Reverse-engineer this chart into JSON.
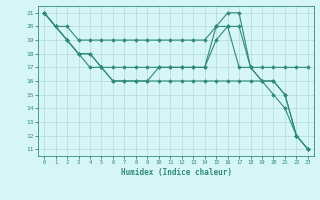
{
  "xlabel": "Humidex (Indice chaleur)",
  "bg_color": "#d6f5f5",
  "grid_color": "#b8dede",
  "line_color": "#2e8b7a",
  "xlim": [
    -0.5,
    23.5
  ],
  "ylim": [
    10.5,
    21.5
  ],
  "xticks": [
    0,
    1,
    2,
    3,
    4,
    5,
    6,
    7,
    8,
    9,
    10,
    11,
    12,
    13,
    14,
    15,
    16,
    17,
    18,
    19,
    20,
    21,
    22,
    23
  ],
  "yticks": [
    11,
    12,
    13,
    14,
    15,
    16,
    17,
    18,
    19,
    20,
    21
  ],
  "lines": [
    {
      "x": [
        0,
        1,
        2,
        3,
        4,
        5,
        6,
        7,
        8,
        9,
        10,
        11,
        12,
        13,
        14,
        15,
        16,
        17,
        18,
        19,
        20,
        21,
        22,
        23
      ],
      "y": [
        21,
        20,
        20,
        19,
        19,
        19,
        19,
        19,
        19,
        19,
        19,
        19,
        19,
        19,
        19,
        20,
        20,
        20,
        17,
        17,
        17,
        17,
        17,
        17
      ]
    },
    {
      "x": [
        0,
        1,
        2,
        3,
        4,
        5,
        6,
        7,
        8,
        9,
        10,
        11,
        12,
        13,
        14,
        15,
        16,
        17,
        18,
        19,
        20,
        21,
        22,
        23
      ],
      "y": [
        21,
        20,
        19,
        18,
        18,
        17,
        17,
        17,
        17,
        17,
        17,
        17,
        17,
        17,
        17,
        19,
        20,
        17,
        17,
        16,
        16,
        15,
        12,
        11
      ]
    },
    {
      "x": [
        0,
        1,
        2,
        3,
        4,
        5,
        6,
        7,
        8,
        9,
        10,
        11,
        12,
        13,
        14,
        15,
        16,
        17,
        18,
        19,
        20,
        21,
        22,
        23
      ],
      "y": [
        21,
        20,
        19,
        18,
        18,
        17,
        16,
        16,
        16,
        16,
        17,
        17,
        17,
        17,
        17,
        20,
        21,
        21,
        17,
        16,
        16,
        15,
        12,
        11
      ]
    },
    {
      "x": [
        0,
        1,
        2,
        3,
        4,
        5,
        6,
        7,
        8,
        9,
        10,
        11,
        12,
        13,
        14,
        15,
        16,
        17,
        18,
        19,
        20,
        21,
        22,
        23
      ],
      "y": [
        21,
        20,
        19,
        18,
        17,
        17,
        16,
        16,
        16,
        16,
        16,
        16,
        16,
        16,
        16,
        16,
        16,
        16,
        16,
        16,
        15,
        14,
        12,
        11
      ]
    }
  ]
}
